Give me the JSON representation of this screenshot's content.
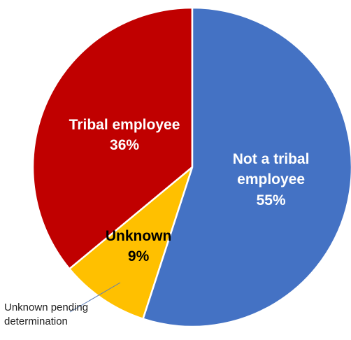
{
  "chart_data": {
    "type": "pie",
    "categories": [
      "Not a tribal employee",
      "Unknown",
      "Tribal employee"
    ],
    "values": [
      55,
      9,
      36
    ],
    "value_labels": [
      "55%",
      "9%",
      "36%"
    ],
    "colors": [
      "#4472c4",
      "#ffc000",
      "#c00000"
    ],
    "label_colors": [
      "#ffffff",
      "#000000",
      "#ffffff"
    ],
    "start_angle": 0,
    "direction": "clockwise",
    "annotation": "Unknown pending determination"
  }
}
